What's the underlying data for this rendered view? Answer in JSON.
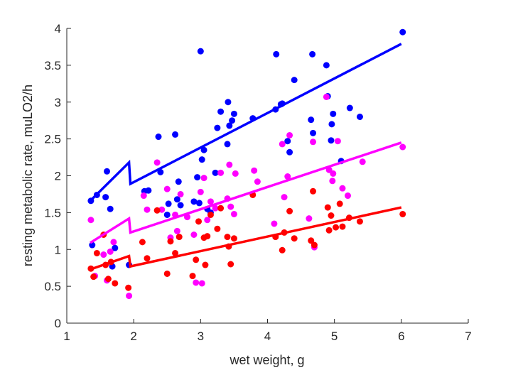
{
  "chart_data": {
    "type": "scatter",
    "xlabel": "wet weight, g",
    "ylabel": "resting metabolic rate, muLO2/h",
    "xlim": [
      1,
      7
    ],
    "ylim": [
      0,
      4
    ],
    "xticks": [
      "1",
      "2",
      "3",
      "4",
      "5",
      "6",
      "7"
    ],
    "yticks": [
      "0",
      "0.5",
      "1",
      "1.5",
      "2",
      "2.5",
      "3",
      "3.5",
      "4"
    ],
    "grid": false,
    "legend": "none",
    "series": [
      {
        "color": "#0000ff",
        "points": [
          [
            1.36,
            1.66
          ],
          [
            1.38,
            1.06
          ],
          [
            1.45,
            1.74
          ],
          [
            1.58,
            1.71
          ],
          [
            1.6,
            2.06
          ],
          [
            1.65,
            1.55
          ],
          [
            1.68,
            0.77
          ],
          [
            1.72,
            1.02
          ],
          [
            1.93,
            0.79
          ],
          [
            2.16,
            1.79
          ],
          [
            2.22,
            1.8
          ],
          [
            2.37,
            2.53
          ],
          [
            2.4,
            2.05
          ],
          [
            2.5,
            1.47
          ],
          [
            2.52,
            1.62
          ],
          [
            2.62,
            2.56
          ],
          [
            2.65,
            1.68
          ],
          [
            2.67,
            1.92
          ],
          [
            2.7,
            1.6
          ],
          [
            2.9,
            1.65
          ],
          [
            2.95,
            1.98
          ],
          [
            2.98,
            1.63
          ],
          [
            3.0,
            3.69
          ],
          [
            3.02,
            2.22
          ],
          [
            3.05,
            2.35
          ],
          [
            3.1,
            1.55
          ],
          [
            3.15,
            1.5
          ],
          [
            3.22,
            2.04
          ],
          [
            3.25,
            2.65
          ],
          [
            3.3,
            2.87
          ],
          [
            3.4,
            2.43
          ],
          [
            3.41,
            3.0
          ],
          [
            3.43,
            2.68
          ],
          [
            3.47,
            2.75
          ],
          [
            3.5,
            2.84
          ],
          [
            3.78,
            2.78
          ],
          [
            4.12,
            2.9
          ],
          [
            4.13,
            3.65
          ],
          [
            4.2,
            2.97
          ],
          [
            4.22,
            2.98
          ],
          [
            4.3,
            2.47
          ],
          [
            4.33,
            2.32
          ],
          [
            4.4,
            3.3
          ],
          [
            4.65,
            2.76
          ],
          [
            4.67,
            3.65
          ],
          [
            4.68,
            2.58
          ],
          [
            4.88,
            3.5
          ],
          [
            4.9,
            3.08
          ],
          [
            4.95,
            2.48
          ],
          [
            4.96,
            2.7
          ],
          [
            4.98,
            2.84
          ],
          [
            5.1,
            2.2
          ],
          [
            5.23,
            2.92
          ],
          [
            5.38,
            2.8
          ],
          [
            6.02,
            3.95
          ]
        ]
      },
      {
        "color": "#ff00ff",
        "points": [
          [
            1.36,
            1.4
          ],
          [
            1.42,
            0.64
          ],
          [
            1.55,
            0.93
          ],
          [
            1.6,
            0.58
          ],
          [
            1.65,
            0.97
          ],
          [
            1.7,
            1.1
          ],
          [
            1.93,
            0.37
          ],
          [
            2.15,
            1.73
          ],
          [
            2.2,
            1.54
          ],
          [
            2.35,
            2.18
          ],
          [
            2.42,
            1.54
          ],
          [
            2.5,
            1.82
          ],
          [
            2.55,
            1.16
          ],
          [
            2.62,
            1.47
          ],
          [
            2.65,
            1.25
          ],
          [
            2.7,
            1.75
          ],
          [
            2.8,
            1.44
          ],
          [
            2.9,
            1.2
          ],
          [
            2.93,
            0.55
          ],
          [
            3.0,
            1.78
          ],
          [
            3.02,
            0.54
          ],
          [
            3.05,
            1.97
          ],
          [
            3.1,
            1.4
          ],
          [
            3.15,
            1.65
          ],
          [
            3.22,
            1.56
          ],
          [
            3.3,
            2.04
          ],
          [
            3.4,
            1.69
          ],
          [
            3.43,
            2.15
          ],
          [
            3.45,
            1.58
          ],
          [
            3.5,
            1.48
          ],
          [
            3.52,
            2.03
          ],
          [
            3.8,
            2.07
          ],
          [
            3.85,
            1.92
          ],
          [
            4.1,
            1.35
          ],
          [
            4.22,
            2.43
          ],
          [
            4.25,
            1.71
          ],
          [
            4.3,
            1.99
          ],
          [
            4.33,
            2.55
          ],
          [
            4.62,
            1.42
          ],
          [
            4.68,
            2.46
          ],
          [
            4.7,
            1.03
          ],
          [
            4.88,
            3.07
          ],
          [
            4.92,
            2.08
          ],
          [
            4.97,
            1.93
          ],
          [
            4.98,
            2.03
          ],
          [
            5.05,
            2.47
          ],
          [
            5.12,
            1.83
          ],
          [
            5.2,
            1.73
          ],
          [
            5.42,
            2.19
          ],
          [
            6.02,
            2.39
          ]
        ]
      },
      {
        "color": "#ff0000",
        "points": [
          [
            1.36,
            0.74
          ],
          [
            1.4,
            0.63
          ],
          [
            1.45,
            0.95
          ],
          [
            1.55,
            1.2
          ],
          [
            1.58,
            0.79
          ],
          [
            1.62,
            0.6
          ],
          [
            1.66,
            0.83
          ],
          [
            1.72,
            0.54
          ],
          [
            1.92,
            0.48
          ],
          [
            2.13,
            1.1
          ],
          [
            2.2,
            0.88
          ],
          [
            2.35,
            1.53
          ],
          [
            2.5,
            0.67
          ],
          [
            2.55,
            1.11
          ],
          [
            2.62,
            0.95
          ],
          [
            2.68,
            1.17
          ],
          [
            2.88,
            0.64
          ],
          [
            2.93,
            0.86
          ],
          [
            2.97,
            1.38
          ],
          [
            3.05,
            1.16
          ],
          [
            3.07,
            0.79
          ],
          [
            3.1,
            1.18
          ],
          [
            3.15,
            1.47
          ],
          [
            3.25,
            1.28
          ],
          [
            3.3,
            1.56
          ],
          [
            3.4,
            1.17
          ],
          [
            3.42,
            1.04
          ],
          [
            3.45,
            0.8
          ],
          [
            3.5,
            1.15
          ],
          [
            3.78,
            1.74
          ],
          [
            4.12,
            1.17
          ],
          [
            4.22,
            0.99
          ],
          [
            4.25,
            1.23
          ],
          [
            4.33,
            1.52
          ],
          [
            4.4,
            1.15
          ],
          [
            4.65,
            1.12
          ],
          [
            4.68,
            1.79
          ],
          [
            4.7,
            1.06
          ],
          [
            4.9,
            1.57
          ],
          [
            4.92,
            1.26
          ],
          [
            4.95,
            1.46
          ],
          [
            5.02,
            1.3
          ],
          [
            5.08,
            1.62
          ],
          [
            5.12,
            1.31
          ],
          [
            5.22,
            1.43
          ],
          [
            5.38,
            1.38
          ],
          [
            6.02,
            1.48
          ]
        ]
      }
    ],
    "fit_lines": [
      {
        "color": "#0000ff",
        "points": [
          [
            1.35,
            1.66
          ],
          [
            1.93,
            2.18
          ],
          [
            1.95,
            1.89
          ],
          [
            6.0,
            3.79
          ]
        ]
      },
      {
        "color": "#ff00ff",
        "points": [
          [
            1.35,
            1.09
          ],
          [
            1.93,
            1.42
          ],
          [
            1.95,
            1.23
          ],
          [
            6.0,
            2.45
          ]
        ]
      },
      {
        "color": "#ff0000",
        "points": [
          [
            1.35,
            0.73
          ],
          [
            1.93,
            0.91
          ],
          [
            1.95,
            0.77
          ],
          [
            6.0,
            1.57
          ]
        ]
      }
    ]
  }
}
